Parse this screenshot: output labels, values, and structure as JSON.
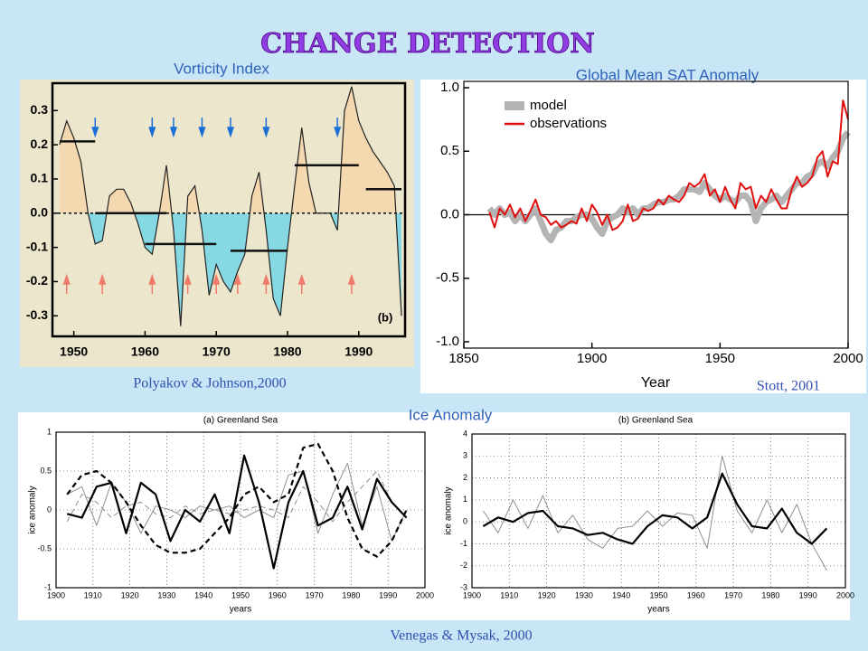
{
  "title": "CHANGE DETECTION",
  "group_title": "Ice Anomaly",
  "group_source": "Venegas & Mysak, 2000",
  "chart_data": [
    {
      "type": "area",
      "title": "Vorticity Index",
      "source": "Polyakov & Johnson,2000",
      "panel_label": "(b)",
      "x": [
        1948,
        1949,
        1950,
        1951,
        1952,
        1953,
        1954,
        1955,
        1956,
        1957,
        1958,
        1959,
        1960,
        1961,
        1962,
        1963,
        1964,
        1965,
        1966,
        1967,
        1968,
        1969,
        1970,
        1971,
        1972,
        1973,
        1974,
        1975,
        1976,
        1977,
        1978,
        1979,
        1980,
        1981,
        1982,
        1983,
        1984,
        1985,
        1986,
        1987,
        1988,
        1989,
        1990,
        1991,
        1992,
        1993,
        1994,
        1995,
        1996
      ],
      "values": [
        0.2,
        0.27,
        0.22,
        0.15,
        0.0,
        -0.09,
        -0.08,
        0.05,
        0.07,
        0.07,
        0.03,
        -0.03,
        -0.1,
        -0.12,
        0.0,
        0.14,
        -0.05,
        -0.33,
        0.05,
        0.08,
        -0.05,
        -0.24,
        -0.15,
        -0.2,
        -0.23,
        -0.17,
        -0.12,
        0.05,
        0.12,
        -0.05,
        -0.25,
        -0.3,
        -0.1,
        0.08,
        0.25,
        0.09,
        0.0,
        0.0,
        0.0,
        -0.05,
        0.3,
        0.37,
        0.27,
        0.22,
        0.18,
        0.15,
        0.12,
        0.08,
        -0.3
      ],
      "above_color": "#f3d8b0",
      "below_color": "#86d8e2",
      "segments": [
        {
          "x": [
            1948,
            1953
          ],
          "value": 0.21
        },
        {
          "x": [
            1953,
            1963
          ],
          "value": 0.0
        },
        {
          "x": [
            1960,
            1970
          ],
          "value": -0.09
        },
        {
          "x": [
            1972,
            1980
          ],
          "value": -0.11
        },
        {
          "x": [
            1981,
            1990
          ],
          "value": 0.14
        },
        {
          "x": [
            1991,
            1996
          ],
          "value": 0.07
        }
      ],
      "down_arrows": [
        1953,
        1961,
        1964,
        1968,
        1972,
        1977,
        1987
      ],
      "up_arrows": [
        1949,
        1954,
        1961,
        1966,
        1970,
        1973,
        1977,
        1982,
        1989
      ],
      "xlim": [
        1947,
        1996.5
      ],
      "ylim": [
        -0.36,
        0.38
      ],
      "xticks": [
        1950,
        1960,
        1970,
        1980,
        1990
      ],
      "yticks": [
        0.3,
        0.2,
        0.1,
        {
          "value": 0,
          "label": "0.0"
        },
        -0.1,
        -0.2,
        -0.3
      ]
    },
    {
      "type": "line",
      "title": "Global Mean SAT Anomaly",
      "source": "Stott, 2001",
      "xlabel": "Year",
      "legend": "upper left",
      "x": [
        1860,
        1862,
        1864,
        1866,
        1868,
        1870,
        1872,
        1874,
        1876,
        1878,
        1880,
        1882,
        1884,
        1886,
        1888,
        1890,
        1892,
        1894,
        1896,
        1898,
        1900,
        1902,
        1904,
        1906,
        1908,
        1910,
        1912,
        1914,
        1916,
        1918,
        1920,
        1922,
        1924,
        1926,
        1928,
        1930,
        1932,
        1934,
        1936,
        1938,
        1940,
        1942,
        1944,
        1946,
        1948,
        1950,
        1952,
        1954,
        1956,
        1958,
        1960,
        1962,
        1964,
        1966,
        1968,
        1970,
        1972,
        1974,
        1976,
        1978,
        1980,
        1982,
        1984,
        1986,
        1988,
        1990,
        1992,
        1994,
        1996,
        1998,
        2000
      ],
      "series": [
        {
          "name": "model",
          "color": "#b4b4b4",
          "linewidth": "band",
          "values": [
            0.05,
            0.0,
            0.05,
            0.0,
            0.02,
            -0.05,
            0.0,
            -0.05,
            0.0,
            0.05,
            -0.05,
            -0.15,
            -0.2,
            -0.12,
            -0.1,
            -0.05,
            -0.05,
            -0.02,
            0.0,
            0.0,
            -0.03,
            -0.1,
            -0.15,
            -0.05,
            -0.02,
            0.0,
            0.05,
            0.02,
            0.05,
            0.0,
            0.05,
            0.05,
            0.08,
            0.1,
            0.1,
            0.12,
            0.12,
            0.15,
            0.2,
            0.2,
            0.2,
            0.18,
            0.25,
            0.2,
            0.15,
            0.12,
            0.15,
            0.12,
            0.1,
            0.15,
            0.15,
            0.1,
            -0.05,
            0.05,
            0.1,
            0.12,
            0.15,
            0.1,
            0.15,
            0.2,
            0.25,
            0.25,
            0.3,
            0.32,
            0.4,
            0.42,
            0.38,
            0.45,
            0.5,
            0.6,
            0.65
          ]
        },
        {
          "name": "observations",
          "color": "#e01010",
          "linewidth": "medium",
          "values": [
            0.02,
            -0.1,
            0.05,
            0.0,
            0.08,
            -0.02,
            0.05,
            -0.05,
            0.03,
            0.12,
            0.0,
            -0.02,
            -0.08,
            -0.05,
            -0.1,
            -0.08,
            -0.05,
            -0.07,
            0.05,
            -0.05,
            0.08,
            0.02,
            -0.08,
            0.0,
            -0.12,
            -0.1,
            -0.05,
            0.08,
            -0.05,
            -0.03,
            0.05,
            0.03,
            0.05,
            0.12,
            0.08,
            0.15,
            0.12,
            0.1,
            0.15,
            0.25,
            0.22,
            0.25,
            0.32,
            0.15,
            0.2,
            0.1,
            0.22,
            0.12,
            0.05,
            0.25,
            0.2,
            0.22,
            0.05,
            0.15,
            0.1,
            0.2,
            0.12,
            0.05,
            0.05,
            0.2,
            0.3,
            0.22,
            0.25,
            0.3,
            0.45,
            0.5,
            0.3,
            0.42,
            0.4,
            0.9,
            0.75
          ]
        }
      ],
      "xlim": [
        1850,
        2000
      ],
      "ylim": [
        -1.05,
        1.05
      ],
      "xticks": [
        1850,
        1900,
        1950,
        2000
      ],
      "yticks": [
        {
          "value": 1,
          "label": "1.0"
        },
        0.5,
        {
          "value": 0,
          "label": "0.0"
        },
        -0.5,
        {
          "value": -1,
          "label": "-1.0"
        }
      ]
    },
    {
      "type": "line",
      "title": "(a) Greenland Sea",
      "xlabel": "years",
      "ylabel": "ice anomaly",
      "grid": true,
      "x": [
        1903,
        1907,
        1911,
        1915,
        1919,
        1923,
        1927,
        1931,
        1935,
        1939,
        1943,
        1947,
        1951,
        1955,
        1959,
        1963,
        1967,
        1971,
        1975,
        1979,
        1983,
        1987,
        1991,
        1995
      ],
      "series": [
        {
          "color": "#909090",
          "linewidth": "thin",
          "values": [
            0.2,
            0.3,
            -0.2,
            0.35,
            0.1,
            -0.3,
            0.05,
            0.0,
            -0.1,
            0.05,
            0.0,
            0.05,
            -0.1,
            0.0,
            -0.1,
            0.45,
            0.5,
            -0.3,
            0.2,
            0.6,
            -0.2,
            0.3,
            -0.4,
            0.0
          ]
        },
        {
          "color": "#909090",
          "linewidth": "thin",
          "linestyle": "dashed",
          "values": [
            -0.15,
            0.2,
            0.1,
            -0.1,
            0.05,
            0.1,
            -0.05,
            -0.1,
            0.05,
            -0.05,
            0.0,
            -0.05,
            0.0,
            0.05,
            0.0,
            -0.1,
            0.3,
            0.1,
            -0.15,
            0.1,
            0.3,
            0.5,
            0.1,
            -0.1
          ]
        },
        {
          "color": "#000000",
          "linewidth": "thick",
          "linestyle": "dashed",
          "values": [
            0.2,
            0.45,
            0.5,
            0.35,
            0.1,
            -0.2,
            -0.45,
            -0.55,
            -0.55,
            -0.5,
            -0.3,
            -0.1,
            0.2,
            0.3,
            0.1,
            0.2,
            0.8,
            0.85,
            0.5,
            -0.1,
            -0.5,
            -0.6,
            -0.4,
            0.0
          ]
        },
        {
          "color": "#000000",
          "linewidth": "thick",
          "values": [
            -0.05,
            -0.1,
            0.3,
            0.35,
            -0.3,
            0.35,
            0.2,
            -0.4,
            0.0,
            -0.15,
            0.2,
            -0.3,
            0.7,
            0.1,
            -0.75,
            0.1,
            0.5,
            -0.2,
            -0.1,
            0.3,
            -0.25,
            0.4,
            0.1,
            -0.1
          ]
        }
      ],
      "xlim": [
        1900,
        2000
      ],
      "ylim": [
        -1,
        1
      ],
      "xticks": [
        1900,
        1910,
        1920,
        1930,
        1940,
        1950,
        1960,
        1970,
        1980,
        1990,
        2000
      ],
      "yticks": [
        1,
        0.5,
        0,
        -0.5,
        -1
      ]
    },
    {
      "type": "line",
      "title": "(b) Greenland Sea",
      "xlabel": "years",
      "ylabel": "ice anomaly",
      "grid": true,
      "x": [
        1903,
        1907,
        1911,
        1915,
        1919,
        1923,
        1927,
        1931,
        1935,
        1939,
        1943,
        1947,
        1951,
        1955,
        1959,
        1963,
        1967,
        1971,
        1975,
        1979,
        1983,
        1987,
        1991,
        1995
      ],
      "series": [
        {
          "color": "#909090",
          "linewidth": "thin",
          "values": [
            0.5,
            -0.5,
            1.0,
            -0.3,
            1.2,
            -0.5,
            0.3,
            -0.8,
            -1.2,
            -0.3,
            -0.2,
            0.5,
            -0.2,
            0.4,
            0.3,
            -1.2,
            3.0,
            0.5,
            -0.5,
            1.0,
            -0.5,
            0.8,
            -1.0,
            -2.2
          ]
        },
        {
          "color": "#000000",
          "linewidth": "thick",
          "values": [
            -0.2,
            0.2,
            0.0,
            0.4,
            0.5,
            -0.2,
            -0.3,
            -0.6,
            -0.5,
            -0.8,
            -1.0,
            -0.2,
            0.3,
            0.2,
            -0.3,
            0.2,
            2.2,
            0.8,
            -0.2,
            -0.3,
            0.6,
            -0.5,
            -1.0,
            -0.3
          ]
        }
      ],
      "xlim": [
        1900,
        2000
      ],
      "ylim": [
        -3,
        4
      ],
      "xticks": [
        1900,
        1910,
        1920,
        1930,
        1940,
        1950,
        1960,
        1970,
        1980,
        1990,
        2000
      ],
      "yticks": [
        4,
        3,
        2,
        1,
        0,
        -1,
        -2,
        -3
      ]
    }
  ]
}
